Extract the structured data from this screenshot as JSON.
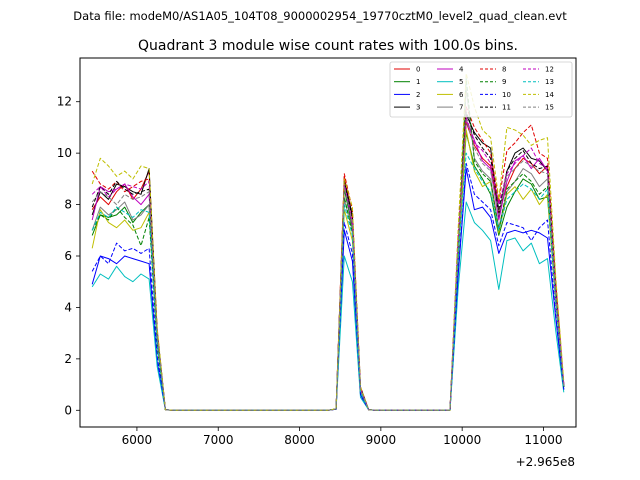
{
  "figure": {
    "suptitle": "Data file: modeM0/AS1A05_104T08_9000002954_19770cztM0_level2_quad_clean.evt"
  },
  "chart_data": {
    "type": "line",
    "title": "Quadrant 3 module wise count rates with 100.0s bins.",
    "xlabel": "",
    "ylabel": "",
    "x_offset_label": "+2.965e8",
    "xlim": [
      5300,
      11400
    ],
    "ylim": [
      -0.65,
      13.7
    ],
    "xticks": [
      6000,
      7000,
      8000,
      9000,
      10000,
      11000
    ],
    "yticks": [
      0,
      2,
      4,
      6,
      8,
      10,
      12
    ],
    "grid": false,
    "legend": {
      "position": "top-right",
      "ncol": 4
    },
    "x": [
      5450,
      5550,
      5650,
      5750,
      5850,
      5950,
      6050,
      6150,
      6250,
      6350,
      6450,
      6550,
      6650,
      6750,
      6850,
      6950,
      7050,
      7150,
      7250,
      7350,
      7450,
      7550,
      7650,
      7750,
      7850,
      7950,
      8050,
      8150,
      8250,
      8350,
      8450,
      8550,
      8650,
      8750,
      8850,
      8950,
      9050,
      9150,
      9250,
      9350,
      9450,
      9550,
      9650,
      9750,
      9850,
      9950,
      10050,
      10150,
      10250,
      10350,
      10450,
      10550,
      10650,
      10750,
      10850,
      10950,
      11050,
      11150,
      11250
    ],
    "series": [
      {
        "name": "0",
        "color": "#e00000",
        "dash": false,
        "values": [
          7.8,
          8.3,
          8.0,
          8.5,
          8.8,
          8.2,
          8.6,
          9.3,
          3.0,
          0.02,
          0,
          0,
          0,
          0,
          0,
          0,
          0,
          0,
          0,
          0,
          0,
          0,
          0,
          0,
          0,
          0,
          0,
          0,
          0,
          0,
          0.05,
          9.1,
          7.5,
          0.8,
          0.02,
          0,
          0,
          0,
          0,
          0,
          0,
          0,
          0,
          0,
          0,
          6.4,
          11.2,
          10.3,
          9.8,
          9.5,
          7.7,
          8.7,
          9.4,
          9.8,
          9.6,
          9.2,
          9.5,
          4.5,
          0.9
        ]
      },
      {
        "name": "1",
        "color": "#008000",
        "dash": false,
        "values": [
          6.8,
          7.6,
          7.5,
          7.6,
          7.9,
          7.3,
          7.7,
          8.0,
          2.6,
          0.02,
          0,
          0,
          0,
          0,
          0,
          0,
          0,
          0,
          0,
          0,
          0,
          0,
          0,
          0,
          0,
          0,
          0,
          0,
          0,
          0,
          0.05,
          8.6,
          7.1,
          0.7,
          0.02,
          0,
          0,
          0,
          0,
          0,
          0,
          0,
          0,
          0,
          0,
          5.8,
          10.8,
          9.5,
          9.0,
          8.4,
          6.8,
          7.9,
          8.5,
          9.0,
          8.8,
          8.2,
          8.3,
          4.3,
          0.9
        ]
      },
      {
        "name": "2",
        "color": "#0000ff",
        "dash": false,
        "values": [
          4.9,
          6.0,
          5.9,
          5.7,
          6.0,
          5.9,
          5.8,
          5.7,
          1.9,
          0.02,
          0,
          0,
          0,
          0,
          0,
          0,
          0,
          0,
          0,
          0,
          0,
          0,
          0,
          0,
          0,
          0,
          0,
          0,
          0,
          0,
          0.04,
          7.0,
          5.8,
          0.6,
          0.02,
          0,
          0,
          0,
          0,
          0,
          0,
          0,
          0,
          0,
          0,
          5.2,
          9.4,
          7.8,
          7.9,
          7.5,
          6.1,
          6.9,
          7.0,
          6.9,
          7.0,
          6.9,
          6.7,
          3.6,
          0.8
        ]
      },
      {
        "name": "3",
        "color": "#000000",
        "dash": false,
        "values": [
          7.6,
          8.5,
          8.2,
          8.8,
          8.7,
          8.5,
          8.4,
          9.4,
          3.1,
          0.02,
          0,
          0,
          0,
          0,
          0,
          0,
          0,
          0,
          0,
          0,
          0,
          0,
          0,
          0,
          0,
          0,
          0,
          0,
          0,
          0,
          0.05,
          8.9,
          7.6,
          0.9,
          0.02,
          0,
          0,
          0,
          0,
          0,
          0,
          0,
          0,
          0,
          0,
          6.5,
          11.5,
          10.8,
          10.4,
          10.2,
          7.5,
          9.3,
          10.0,
          10.2,
          9.8,
          9.7,
          9.3,
          4.6,
          1.0
        ]
      },
      {
        "name": "4",
        "color": "#bf00bf",
        "dash": false,
        "values": [
          7.4,
          8.7,
          8.5,
          8.6,
          8.8,
          8.3,
          8.0,
          8.4,
          2.9,
          0.02,
          0,
          0,
          0,
          0,
          0,
          0,
          0,
          0,
          0,
          0,
          0,
          0,
          0,
          0,
          0,
          0,
          0,
          0,
          0,
          0,
          0.05,
          8.8,
          7.2,
          0.8,
          0.02,
          0,
          0,
          0,
          0,
          0,
          0,
          0,
          0,
          0,
          0,
          6.3,
          11.3,
          10.5,
          9.7,
          9.4,
          7.4,
          8.9,
          9.7,
          9.9,
          9.4,
          9.8,
          9.3,
          4.4,
          1.0
        ]
      },
      {
        "name": "5",
        "color": "#00bfbf",
        "dash": false,
        "values": [
          4.8,
          5.3,
          5.1,
          5.6,
          5.2,
          5.0,
          5.3,
          5.1,
          1.7,
          0.02,
          0,
          0,
          0,
          0,
          0,
          0,
          0,
          0,
          0,
          0,
          0,
          0,
          0,
          0,
          0,
          0,
          0,
          0,
          0,
          0,
          0.04,
          6.0,
          5.0,
          0.5,
          0.02,
          0,
          0,
          0,
          0,
          0,
          0,
          0,
          0,
          0,
          0,
          4.7,
          8.1,
          7.3,
          7.0,
          6.6,
          4.7,
          6.6,
          6.7,
          6.2,
          6.5,
          5.7,
          5.9,
          3.1,
          0.7
        ]
      },
      {
        "name": "6",
        "color": "#bfbf00",
        "dash": false,
        "values": [
          6.3,
          7.8,
          7.3,
          7.1,
          7.4,
          7.0,
          7.1,
          7.7,
          2.5,
          0.02,
          0,
          0,
          0,
          0,
          0,
          0,
          0,
          0,
          0,
          0,
          0,
          0,
          0,
          0,
          0,
          0,
          0,
          0,
          0,
          0,
          0.05,
          7.8,
          6.6,
          0.7,
          0.02,
          0,
          0,
          0,
          0,
          0,
          0,
          0,
          0,
          0,
          0,
          6.0,
          10.9,
          9.3,
          8.7,
          8.9,
          6.9,
          8.4,
          8.7,
          8.2,
          8.6,
          8.0,
          8.4,
          4.2,
          0.9
        ]
      },
      {
        "name": "7",
        "color": "#808080",
        "dash": false,
        "values": [
          7.0,
          7.9,
          7.6,
          7.8,
          8.1,
          7.4,
          7.6,
          8.0,
          2.7,
          0.02,
          0,
          0,
          0,
          0,
          0,
          0,
          0,
          0,
          0,
          0,
          0,
          0,
          0,
          0,
          0,
          0,
          0,
          0,
          0,
          0,
          0.05,
          8.2,
          7.0,
          0.7,
          0.02,
          0,
          0,
          0,
          0,
          0,
          0,
          0,
          0,
          0,
          0,
          6.1,
          12.5,
          9.8,
          9.3,
          9.0,
          7.1,
          8.5,
          8.9,
          9.4,
          9.2,
          8.7,
          9.0,
          4.3,
          0.9
        ]
      },
      {
        "name": "8",
        "color": "#e00000",
        "dash": true,
        "values": [
          9.3,
          8.8,
          8.6,
          8.9,
          8.5,
          8.7,
          8.9,
          9.0,
          3.1,
          0.02,
          0,
          0,
          0,
          0,
          0,
          0,
          0,
          0,
          0,
          0,
          0,
          0,
          0,
          0,
          0,
          0,
          0,
          0,
          0,
          0,
          0.05,
          9.2,
          7.8,
          0.9,
          0.02,
          0,
          0,
          0,
          0,
          0,
          0,
          0,
          0,
          0,
          0,
          6.8,
          11.8,
          11.0,
          10.5,
          10.0,
          8.1,
          10.1,
          10.4,
          10.8,
          11.1,
          10.0,
          9.8,
          5.0,
          1.0
        ]
      },
      {
        "name": "9",
        "color": "#008000",
        "dash": true,
        "values": [
          7.0,
          7.6,
          7.4,
          7.9,
          7.5,
          7.2,
          6.4,
          7.5,
          2.5,
          0.02,
          0,
          0,
          0,
          0,
          0,
          0,
          0,
          0,
          0,
          0,
          0,
          0,
          0,
          0,
          0,
          0,
          0,
          0,
          0,
          0,
          0.05,
          8.3,
          6.9,
          0.7,
          0.02,
          0,
          0,
          0,
          0,
          0,
          0,
          0,
          0,
          0,
          0,
          6.0,
          12.9,
          9.7,
          9.2,
          8.9,
          7.0,
          8.6,
          8.9,
          9.2,
          8.9,
          8.4,
          8.7,
          4.3,
          0.9
        ]
      },
      {
        "name": "10",
        "color": "#0000ff",
        "dash": true,
        "values": [
          5.4,
          6.0,
          5.7,
          6.5,
          6.2,
          6.3,
          6.1,
          6.3,
          2.1,
          0.02,
          0,
          0,
          0,
          0,
          0,
          0,
          0,
          0,
          0,
          0,
          0,
          0,
          0,
          0,
          0,
          0,
          0,
          0,
          0,
          0,
          0.04,
          7.3,
          6.1,
          0.6,
          0.02,
          0,
          0,
          0,
          0,
          0,
          0,
          0,
          0,
          0,
          0,
          5.3,
          9.6,
          8.4,
          8.1,
          7.8,
          6.4,
          7.3,
          7.2,
          7.1,
          6.6,
          7.1,
          7.4,
          3.7,
          0.8
        ]
      },
      {
        "name": "11",
        "color": "#000000",
        "dash": true,
        "values": [
          7.9,
          8.7,
          8.4,
          8.9,
          8.6,
          8.4,
          8.5,
          8.6,
          2.9,
          0.02,
          0,
          0,
          0,
          0,
          0,
          0,
          0,
          0,
          0,
          0,
          0,
          0,
          0,
          0,
          0,
          0,
          0,
          0,
          0,
          0,
          0.05,
          8.9,
          7.4,
          0.8,
          0.02,
          0,
          0,
          0,
          0,
          0,
          0,
          0,
          0,
          0,
          0,
          6.5,
          11.6,
          10.7,
          10.2,
          9.8,
          7.8,
          9.3,
          9.8,
          10.1,
          9.6,
          9.4,
          9.5,
          4.7,
          0.9
        ]
      },
      {
        "name": "12",
        "color": "#bf00bf",
        "dash": true,
        "values": [
          8.4,
          8.7,
          8.3,
          8.6,
          8.8,
          8.7,
          8.6,
          8.9,
          3.0,
          0.02,
          0,
          0,
          0,
          0,
          0,
          0,
          0,
          0,
          0,
          0,
          0,
          0,
          0,
          0,
          0,
          0,
          0,
          0,
          0,
          0,
          0.05,
          8.8,
          7.3,
          0.8,
          0.02,
          0,
          0,
          0,
          0,
          0,
          0,
          0,
          0,
          0,
          0,
          6.6,
          11.4,
          10.4,
          10.1,
          9.6,
          8.0,
          9.2,
          9.6,
          9.9,
          10.2,
          9.6,
          9.4,
          4.6,
          1.0
        ]
      },
      {
        "name": "13",
        "color": "#00bfbf",
        "dash": true,
        "values": [
          7.0,
          7.7,
          7.5,
          7.9,
          7.7,
          7.5,
          7.8,
          7.7,
          2.6,
          0.02,
          0,
          0,
          0,
          0,
          0,
          0,
          0,
          0,
          0,
          0,
          0,
          0,
          0,
          0,
          0,
          0,
          0,
          0,
          0,
          0,
          0.05,
          8.0,
          6.8,
          0.7,
          0.02,
          0,
          0,
          0,
          0,
          0,
          0,
          0,
          0,
          0,
          0,
          6.0,
          10.0,
          9.4,
          8.9,
          8.5,
          7.0,
          8.2,
          8.5,
          8.8,
          8.6,
          8.2,
          8.6,
          4.3,
          0.9
        ]
      },
      {
        "name": "14",
        "color": "#bfbf00",
        "dash": true,
        "values": [
          8.8,
          9.8,
          9.5,
          9.1,
          9.3,
          9.0,
          9.5,
          9.4,
          3.2,
          0.02,
          0,
          0,
          0,
          0,
          0,
          0,
          0,
          0,
          0,
          0,
          0,
          0,
          0,
          0,
          0,
          0,
          0,
          0,
          0,
          0,
          0.06,
          9.0,
          7.9,
          0.9,
          0.02,
          0,
          0,
          0,
          0,
          0,
          0,
          0,
          0,
          0,
          0,
          7.0,
          13.1,
          11.8,
          10.9,
          10.6,
          8.2,
          11.0,
          10.9,
          10.7,
          10.3,
          10.5,
          10.6,
          5.2,
          1.1
        ]
      },
      {
        "name": "15",
        "color": "#808080",
        "dash": true,
        "values": [
          8.1,
          8.5,
          8.3,
          8.0,
          8.4,
          8.2,
          8.3,
          8.5,
          2.9,
          0.02,
          0,
          0,
          0,
          0,
          0,
          0,
          0,
          0,
          0,
          0,
          0,
          0,
          0,
          0,
          0,
          0,
          0,
          0,
          0,
          0,
          0.05,
          8.7,
          7.3,
          0.8,
          0.02,
          0,
          0,
          0,
          0,
          0,
          0,
          0,
          0,
          0,
          0,
          6.4,
          11.3,
          10.2,
          9.6,
          9.3,
          7.6,
          9.1,
          9.4,
          9.7,
          9.5,
          9.3,
          9.2,
          4.5,
          0.9
        ]
      }
    ]
  }
}
